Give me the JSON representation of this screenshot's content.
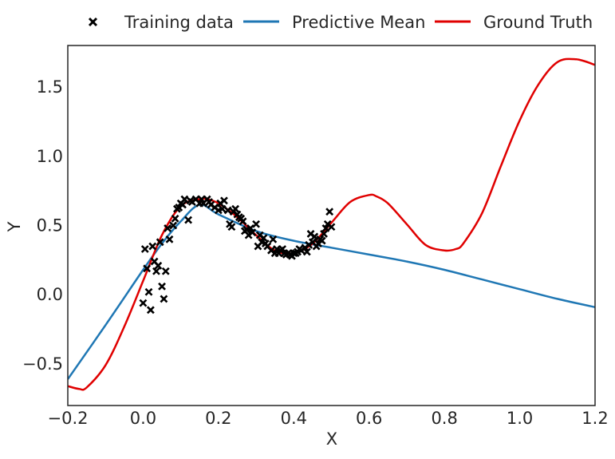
{
  "chart_data": {
    "type": "line",
    "title": "",
    "xlabel": "X",
    "ylabel": "Y",
    "xlim": [
      -0.2,
      1.2
    ],
    "ylim": [
      -0.8,
      1.8
    ],
    "x_ticks": [
      -0.2,
      0.0,
      0.2,
      0.4,
      0.6,
      0.8,
      1.0,
      1.2
    ],
    "x_tick_labels": [
      "−0.2",
      "0.0",
      "0.2",
      "0.4",
      "0.6",
      "0.8",
      "1.0",
      "1.2"
    ],
    "y_ticks": [
      -0.5,
      0.0,
      0.5,
      1.0,
      1.5
    ],
    "y_tick_labels": [
      "−0.5",
      "0.0",
      "0.5",
      "1.0",
      "1.5"
    ],
    "grid": false,
    "legend": {
      "placement": "top-center, above plot",
      "entries": [
        {
          "label": "Training data",
          "marker": "x",
          "color": "#000000"
        },
        {
          "label": "Predictive Mean",
          "marker": "line",
          "color": "#1f77b4"
        },
        {
          "label": "Ground Truth",
          "marker": "line",
          "color": "#e00000"
        }
      ]
    },
    "series": [
      {
        "name": "Training data",
        "kind": "scatter",
        "marker": "x",
        "color": "#000000",
        "points": [
          [
            0.0,
            -0.06
          ],
          [
            0.005,
            0.33
          ],
          [
            0.01,
            0.19
          ],
          [
            0.015,
            0.02
          ],
          [
            0.02,
            -0.11
          ],
          [
            0.025,
            0.35
          ],
          [
            0.03,
            0.24
          ],
          [
            0.035,
            0.17
          ],
          [
            0.04,
            0.21
          ],
          [
            0.045,
            0.38
          ],
          [
            0.05,
            0.06
          ],
          [
            0.055,
            -0.03
          ],
          [
            0.06,
            0.17
          ],
          [
            0.065,
            0.48
          ],
          [
            0.07,
            0.4
          ],
          [
            0.08,
            0.5
          ],
          [
            0.085,
            0.55
          ],
          [
            0.09,
            0.62
          ],
          [
            0.095,
            0.63
          ],
          [
            0.1,
            0.66
          ],
          [
            0.105,
            0.65
          ],
          [
            0.11,
            0.69
          ],
          [
            0.12,
            0.54
          ],
          [
            0.125,
            0.68
          ],
          [
            0.13,
            0.67
          ],
          [
            0.14,
            0.69
          ],
          [
            0.15,
            0.66
          ],
          [
            0.155,
            0.69
          ],
          [
            0.16,
            0.66
          ],
          [
            0.17,
            0.69
          ],
          [
            0.175,
            0.67
          ],
          [
            0.18,
            0.65
          ],
          [
            0.19,
            0.63
          ],
          [
            0.2,
            0.61
          ],
          [
            0.205,
            0.66
          ],
          [
            0.21,
            0.62
          ],
          [
            0.215,
            0.68
          ],
          [
            0.225,
            0.61
          ],
          [
            0.23,
            0.51
          ],
          [
            0.235,
            0.49
          ],
          [
            0.24,
            0.6
          ],
          [
            0.245,
            0.62
          ],
          [
            0.25,
            0.58
          ],
          [
            0.255,
            0.56
          ],
          [
            0.26,
            0.55
          ],
          [
            0.265,
            0.53
          ],
          [
            0.27,
            0.46
          ],
          [
            0.275,
            0.47
          ],
          [
            0.28,
            0.43
          ],
          [
            0.285,
            0.48
          ],
          [
            0.29,
            0.45
          ],
          [
            0.3,
            0.51
          ],
          [
            0.305,
            0.35
          ],
          [
            0.31,
            0.43
          ],
          [
            0.315,
            0.38
          ],
          [
            0.32,
            0.41
          ],
          [
            0.325,
            0.37
          ],
          [
            0.33,
            0.35
          ],
          [
            0.34,
            0.32
          ],
          [
            0.345,
            0.4
          ],
          [
            0.35,
            0.3
          ],
          [
            0.355,
            0.33
          ],
          [
            0.36,
            0.3
          ],
          [
            0.365,
            0.32
          ],
          [
            0.37,
            0.33
          ],
          [
            0.375,
            0.3
          ],
          [
            0.38,
            0.29
          ],
          [
            0.385,
            0.3
          ],
          [
            0.39,
            0.29
          ],
          [
            0.395,
            0.28
          ],
          [
            0.4,
            0.3
          ],
          [
            0.405,
            0.3
          ],
          [
            0.41,
            0.31
          ],
          [
            0.415,
            0.33
          ],
          [
            0.42,
            0.32
          ],
          [
            0.43,
            0.34
          ],
          [
            0.435,
            0.31
          ],
          [
            0.44,
            0.36
          ],
          [
            0.445,
            0.44
          ],
          [
            0.45,
            0.38
          ],
          [
            0.455,
            0.42
          ],
          [
            0.46,
            0.35
          ],
          [
            0.465,
            0.37
          ],
          [
            0.47,
            0.4
          ],
          [
            0.475,
            0.39
          ],
          [
            0.48,
            0.44
          ],
          [
            0.485,
            0.48
          ],
          [
            0.49,
            0.51
          ],
          [
            0.495,
            0.6
          ],
          [
            0.5,
            0.49
          ]
        ]
      },
      {
        "name": "Predictive Mean",
        "kind": "line",
        "color": "#1f77b4",
        "x": [
          -0.2,
          -0.1,
          0.0,
          0.05,
          0.1,
          0.15,
          0.2,
          0.3,
          0.4,
          0.5,
          0.6,
          0.7,
          0.8,
          0.9,
          1.0,
          1.1,
          1.2
        ],
        "y": [
          -0.61,
          -0.22,
          0.18,
          0.37,
          0.53,
          0.65,
          0.58,
          0.46,
          0.39,
          0.34,
          0.29,
          0.24,
          0.18,
          0.11,
          0.04,
          -0.03,
          -0.09
        ]
      },
      {
        "name": "Ground Truth",
        "kind": "line",
        "color": "#e00000",
        "x": [
          -0.2,
          -0.17,
          -0.15,
          -0.1,
          -0.05,
          0.0,
          0.05,
          0.1,
          0.15,
          0.17,
          0.2,
          0.25,
          0.3,
          0.35,
          0.4,
          0.45,
          0.5,
          0.55,
          0.6,
          0.62,
          0.65,
          0.7,
          0.75,
          0.8,
          0.83,
          0.85,
          0.9,
          0.95,
          1.0,
          1.05,
          1.1,
          1.15,
          1.2
        ],
        "y": [
          -0.66,
          -0.68,
          -0.67,
          -0.51,
          -0.23,
          0.1,
          0.43,
          0.64,
          0.69,
          0.69,
          0.66,
          0.56,
          0.43,
          0.32,
          0.3,
          0.37,
          0.52,
          0.67,
          0.72,
          0.71,
          0.66,
          0.51,
          0.36,
          0.32,
          0.33,
          0.37,
          0.59,
          0.93,
          1.26,
          1.52,
          1.68,
          1.7,
          1.66
        ]
      }
    ]
  }
}
